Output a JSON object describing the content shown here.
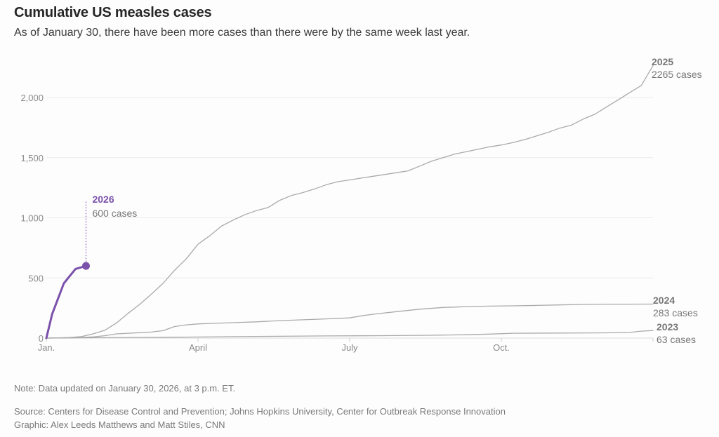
{
  "title": "Cumulative US measles cases",
  "subtitle": "As of January 30, there have been more cases than there were by the same week last year.",
  "note": "Note: Data updated on January 30, 2026, at 3 p.m. ET.",
  "source": "Source: Centers for Disease Control and Prevention; Johns Hopkins University, Center for Outbreak Response Innovation",
  "credit": "Graphic: Alex Leeds Matthews and Matt Stiles, CNN",
  "colors": {
    "highlight": "#7b52ab",
    "other": "#aaaaaa",
    "label_gray": "#777777",
    "grid": "#ebebeb"
  },
  "chart_data": {
    "type": "line",
    "title": "Cumulative US measles cases",
    "xlabel": "",
    "ylabel": "",
    "x_unit": "week of year",
    "xlim": [
      0,
      52
    ],
    "ylim": [
      0,
      2300
    ],
    "grid": true,
    "y_ticks": [
      {
        "value": 0,
        "label": "0"
      },
      {
        "value": 500,
        "label": "500"
      },
      {
        "value": 1000,
        "label": "1,000"
      },
      {
        "value": 1500,
        "label": "1,500"
      },
      {
        "value": 2000,
        "label": "2,000"
      }
    ],
    "x_ticks": [
      {
        "value": 0,
        "label": "Jan."
      },
      {
        "value": 13,
        "label": "April"
      },
      {
        "value": 26,
        "label": "July"
      },
      {
        "value": 39,
        "label": "Oct."
      }
    ],
    "series": [
      {
        "name": "2025",
        "label_year": "2025",
        "label_cases": "2265 cases",
        "highlight": false,
        "x": [
          0,
          1,
          2,
          3,
          4,
          5,
          6,
          7,
          8,
          9,
          10,
          11,
          12,
          13,
          14,
          15,
          16,
          17,
          18,
          19,
          20,
          21,
          22,
          23,
          24,
          25,
          26,
          27,
          28,
          29,
          30,
          31,
          32,
          33,
          34,
          35,
          36,
          37,
          38,
          39,
          40,
          41,
          42,
          43,
          44,
          45,
          46,
          47,
          48,
          49,
          50,
          51,
          52
        ],
        "values": [
          0,
          2,
          5,
          12,
          35,
          65,
          125,
          205,
          280,
          365,
          455,
          565,
          660,
          780,
          850,
          930,
          980,
          1025,
          1060,
          1085,
          1145,
          1185,
          1210,
          1240,
          1275,
          1300,
          1315,
          1330,
          1345,
          1360,
          1375,
          1390,
          1430,
          1470,
          1500,
          1530,
          1550,
          1570,
          1590,
          1605,
          1625,
          1650,
          1680,
          1710,
          1745,
          1770,
          1820,
          1860,
          1920,
          1980,
          2040,
          2100,
          2265
        ]
      },
      {
        "name": "2024",
        "label_year": "2024",
        "label_cases": "283 cases",
        "highlight": false,
        "x": [
          0,
          2,
          4,
          5,
          6,
          7,
          8,
          9,
          10,
          11,
          12,
          13,
          14,
          16,
          18,
          20,
          22,
          24,
          26,
          27,
          28,
          30,
          32,
          34,
          35,
          36,
          38,
          40,
          42,
          44,
          46,
          48,
          50,
          52
        ],
        "values": [
          0,
          2,
          10,
          20,
          35,
          40,
          45,
          50,
          62,
          96,
          110,
          118,
          122,
          128,
          135,
          145,
          152,
          160,
          168,
          185,
          198,
          220,
          240,
          255,
          258,
          262,
          266,
          268,
          272,
          276,
          280,
          282,
          282,
          283
        ]
      },
      {
        "name": "2023",
        "label_year": "2023",
        "label_cases": "63 cases",
        "highlight": false,
        "x": [
          0,
          4,
          8,
          12,
          16,
          20,
          24,
          28,
          32,
          34,
          36,
          38,
          40,
          44,
          48,
          50,
          51,
          52
        ],
        "values": [
          0,
          3,
          5,
          8,
          12,
          15,
          18,
          20,
          23,
          25,
          28,
          33,
          40,
          42,
          44,
          47,
          58,
          63
        ]
      },
      {
        "name": "2026",
        "label_year": "2026",
        "label_cases": "600 cases",
        "highlight": true,
        "x": [
          0,
          0.5,
          1.5,
          2.5,
          3.4
        ],
        "values": [
          0,
          200,
          455,
          575,
          600
        ]
      }
    ]
  }
}
